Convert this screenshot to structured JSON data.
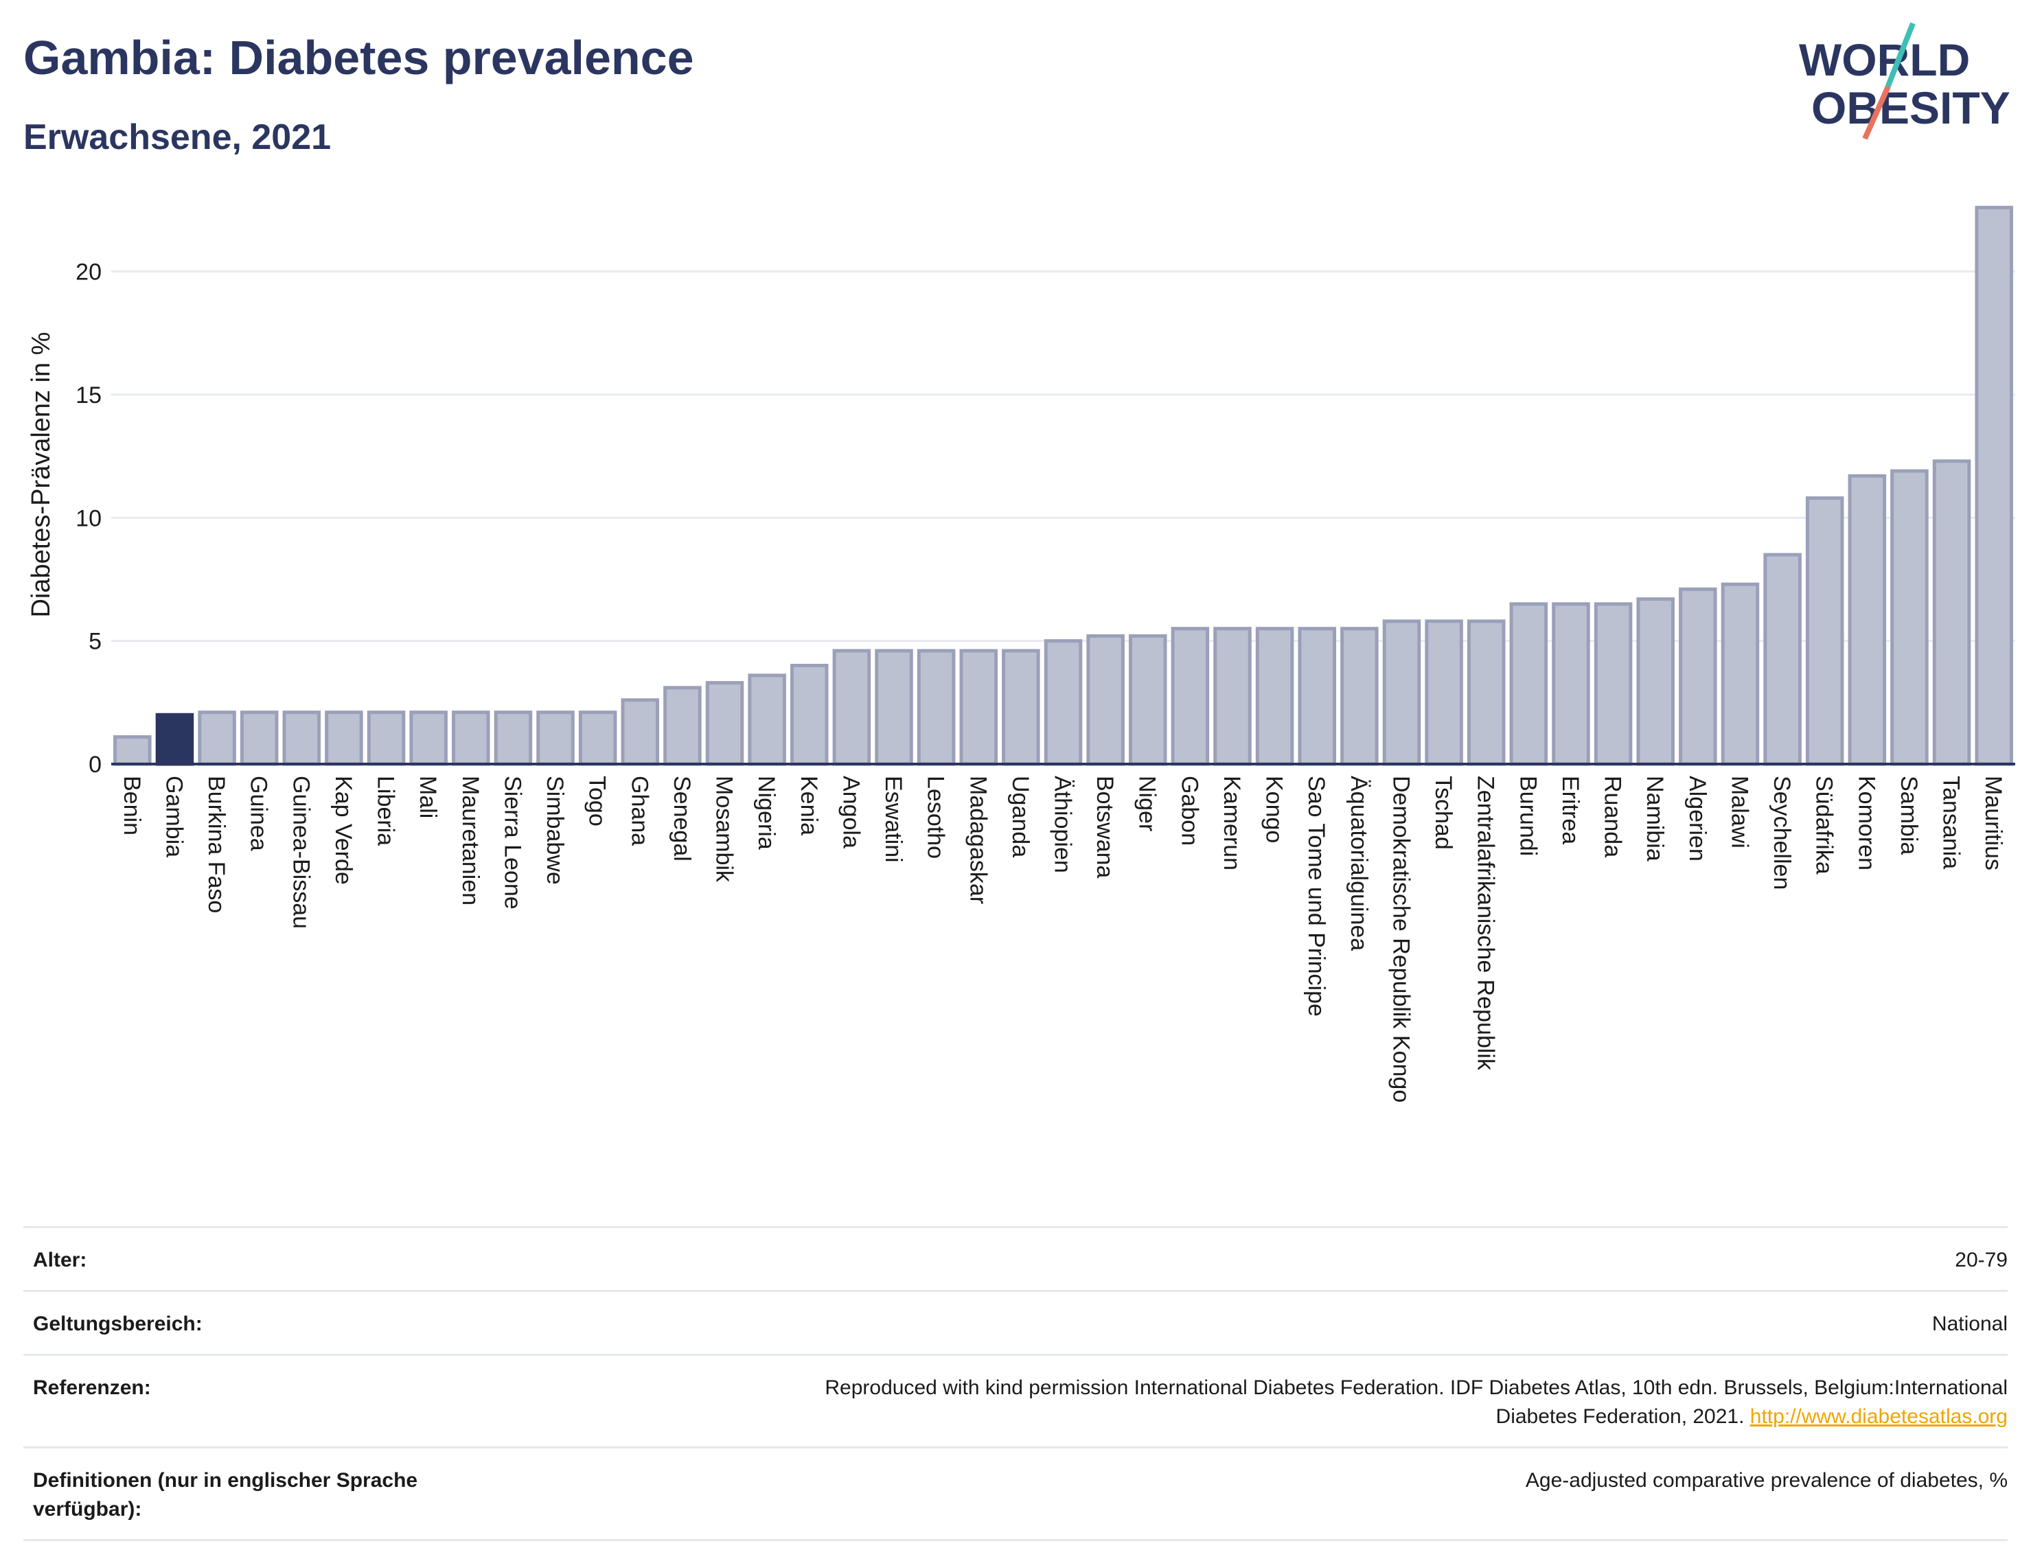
{
  "header": {
    "title": "Gambia: Diabetes prevalence",
    "subtitle": "Erwachsene, 2021"
  },
  "logo": {
    "line1": "WORLD",
    "line2": "OBESITY",
    "colors": {
      "text": "#2b3660",
      "slash_top": "#3fbfb5",
      "slash_bottom": "#e8735f"
    }
  },
  "chart_data": {
    "type": "bar",
    "title": "",
    "xlabel": "",
    "ylabel": "Diabetes-Prävalenz in %",
    "ylim": [
      0,
      23.5
    ],
    "yticks": [
      0,
      5,
      10,
      15,
      20
    ],
    "grid": true,
    "highlight": "Gambia",
    "colors": {
      "bar": "#bcc1d1",
      "bar_stroke": "#9aa0b8",
      "highlight": "#2b3660",
      "grid": "#e8eaf0"
    },
    "categories": [
      "Benin",
      "Gambia",
      "Burkina Faso",
      "Guinea",
      "Guinea-Bissau",
      "Kap Verde",
      "Liberia",
      "Mali",
      "Mauretanien",
      "Sierra Leone",
      "Simbabwe",
      "Togo",
      "Ghana",
      "Senegal",
      "Mosambik",
      "Nigeria",
      "Kenia",
      "Angola",
      "Eswatini",
      "Lesotho",
      "Madagaskar",
      "Uganda",
      "Äthiopien",
      "Botswana",
      "Niger",
      "Gabon",
      "Kamerun",
      "Kongo",
      "Sao Tome und Principe",
      "Äquatorialguinea",
      "Demokratische Republik Kongo",
      "Tschad",
      "Zentralafrikanische Republik",
      "Burundi",
      "Eritrea",
      "Ruanda",
      "Namibia",
      "Algerien",
      "Malawi",
      "Seychellen",
      "Südafrika",
      "Komoren",
      "Sambia",
      "Tansania",
      "Mauritius"
    ],
    "values": [
      1.1,
      2.0,
      2.1,
      2.1,
      2.1,
      2.1,
      2.1,
      2.1,
      2.1,
      2.1,
      2.1,
      2.1,
      2.6,
      3.1,
      3.3,
      3.6,
      4.0,
      4.6,
      4.6,
      4.6,
      4.6,
      4.6,
      5.0,
      5.2,
      5.2,
      5.5,
      5.5,
      5.5,
      5.5,
      5.5,
      5.8,
      5.8,
      5.8,
      6.5,
      6.5,
      6.5,
      6.7,
      7.1,
      7.3,
      8.5,
      10.8,
      11.7,
      11.9,
      12.3,
      22.6
    ]
  },
  "meta": {
    "age_label": "Alter:",
    "age_value": "20-79",
    "scope_label": "Geltungsbereich:",
    "scope_value": "National",
    "refs_label": "Referenzen:",
    "refs_line1": "Reproduced with kind permission International Diabetes Federation.  IDF Diabetes Atlas, 10th edn. Brussels, Belgium:International",
    "refs_line2": "Diabetes Federation, 2021.",
    "refs_link": "http://www.diabetesatlas.org",
    "def_label": "Definitionen (nur in englischer Sprache verfügbar):",
    "def_value": "Age-adjusted comparative prevalence of diabetes, %"
  }
}
